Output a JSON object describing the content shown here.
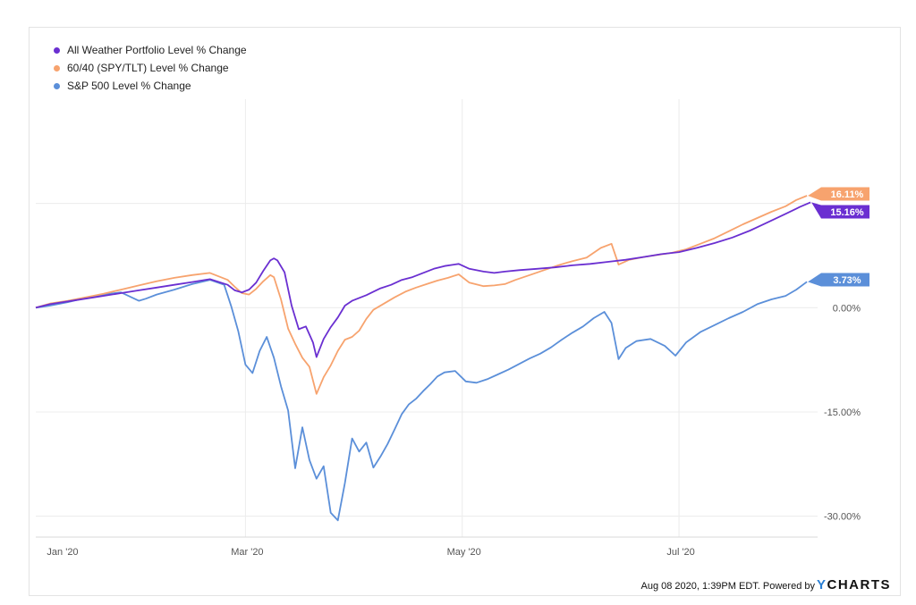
{
  "footer": {
    "timestamp": "Aug 08 2020, 1:39PM EDT.",
    "powered_by": "Powered by",
    "brand_prefix": "Y",
    "brand_name": "CHARTS"
  },
  "chart_data": {
    "type": "line",
    "xaxis": {
      "ticks": [
        {
          "label": "Jan '20",
          "day": -1
        },
        {
          "label": "Mar '20",
          "day": 58
        },
        {
          "label": "May '20",
          "day": 119
        },
        {
          "label": "Jul '20",
          "day": 180
        }
      ],
      "range_days": [
        -1,
        219
      ]
    },
    "yaxis": {
      "ticks": [
        {
          "label": "0.00%",
          "value": 0
        },
        {
          "label": "-15.00%",
          "value": -15
        },
        {
          "label": "-30.00%",
          "value": -30
        }
      ],
      "range": [
        -33,
        30
      ],
      "grid": true
    },
    "legend_position": "top-left",
    "series": [
      {
        "name": "All Weather Portfolio Level % Change",
        "color": "#6a2fd1",
        "end_label": "15.16%",
        "points": [
          [
            -1,
            0
          ],
          [
            3,
            0.5
          ],
          [
            8,
            0.9
          ],
          [
            13,
            1.3
          ],
          [
            18,
            1.7
          ],
          [
            23,
            2.1
          ],
          [
            28,
            2.5
          ],
          [
            33,
            2.9
          ],
          [
            38,
            3.3
          ],
          [
            43,
            3.7
          ],
          [
            48,
            4.1
          ],
          [
            53,
            3.3
          ],
          [
            55,
            2.5
          ],
          [
            57,
            2.2
          ],
          [
            59,
            2.6
          ],
          [
            61,
            3.6
          ],
          [
            63,
            5.3
          ],
          [
            65,
            6.8
          ],
          [
            66,
            7.1
          ],
          [
            67,
            6.8
          ],
          [
            69,
            5.1
          ],
          [
            71,
            0.3
          ],
          [
            73,
            -3.1
          ],
          [
            75,
            -2.7
          ],
          [
            77,
            -5.0
          ],
          [
            78,
            -7.1
          ],
          [
            80,
            -4.5
          ],
          [
            82,
            -2.8
          ],
          [
            84,
            -1.4
          ],
          [
            86,
            0.3
          ],
          [
            88,
            1.0
          ],
          [
            90,
            1.4
          ],
          [
            92,
            1.8
          ],
          [
            94,
            2.3
          ],
          [
            96,
            2.8
          ],
          [
            99,
            3.3
          ],
          [
            102,
            4.0
          ],
          [
            105,
            4.4
          ],
          [
            108,
            5.0
          ],
          [
            111,
            5.6
          ],
          [
            114,
            6.0
          ],
          [
            118,
            6.3
          ],
          [
            121,
            5.6
          ],
          [
            125,
            5.2
          ],
          [
            128,
            5.0
          ],
          [
            131,
            5.2
          ],
          [
            135,
            5.4
          ],
          [
            140,
            5.6
          ],
          [
            145,
            5.8
          ],
          [
            150,
            6.1
          ],
          [
            155,
            6.3
          ],
          [
            160,
            6.6
          ],
          [
            165,
            6.9
          ],
          [
            170,
            7.3
          ],
          [
            175,
            7.7
          ],
          [
            180,
            8.0
          ],
          [
            185,
            8.6
          ],
          [
            190,
            9.3
          ],
          [
            195,
            10.1
          ],
          [
            200,
            11.1
          ],
          [
            205,
            12.3
          ],
          [
            210,
            13.5
          ],
          [
            214,
            14.5
          ],
          [
            217,
            15.16
          ]
        ]
      },
      {
        "name": "60/40 (SPY/TLT) Level % Change",
        "color": "#f7a36e",
        "end_label": "16.11%",
        "points": [
          [
            -1,
            0
          ],
          [
            3,
            0.6
          ],
          [
            8,
            1.0
          ],
          [
            13,
            1.5
          ],
          [
            18,
            2.0
          ],
          [
            23,
            2.6
          ],
          [
            28,
            3.2
          ],
          [
            33,
            3.8
          ],
          [
            38,
            4.3
          ],
          [
            43,
            4.7
          ],
          [
            48,
            5.0
          ],
          [
            53,
            4.0
          ],
          [
            55,
            3.0
          ],
          [
            57,
            2.1
          ],
          [
            59,
            1.9
          ],
          [
            61,
            2.7
          ],
          [
            63,
            3.8
          ],
          [
            65,
            4.7
          ],
          [
            66,
            4.4
          ],
          [
            68,
            1.2
          ],
          [
            70,
            -3.0
          ],
          [
            72,
            -5.2
          ],
          [
            74,
            -7.2
          ],
          [
            76,
            -8.5
          ],
          [
            78,
            -12.4
          ],
          [
            80,
            -10.0
          ],
          [
            82,
            -8.3
          ],
          [
            84,
            -6.2
          ],
          [
            86,
            -4.6
          ],
          [
            88,
            -4.2
          ],
          [
            90,
            -3.3
          ],
          [
            92,
            -1.6
          ],
          [
            94,
            -0.3
          ],
          [
            97,
            0.6
          ],
          [
            100,
            1.5
          ],
          [
            103,
            2.3
          ],
          [
            106,
            2.9
          ],
          [
            109,
            3.4
          ],
          [
            112,
            3.9
          ],
          [
            115,
            4.3
          ],
          [
            118,
            4.8
          ],
          [
            121,
            3.6
          ],
          [
            125,
            3.1
          ],
          [
            128,
            3.2
          ],
          [
            131,
            3.4
          ],
          [
            134,
            4.0
          ],
          [
            138,
            4.7
          ],
          [
            142,
            5.4
          ],
          [
            146,
            6.1
          ],
          [
            150,
            6.7
          ],
          [
            154,
            7.2
          ],
          [
            158,
            8.6
          ],
          [
            161,
            9.2
          ],
          [
            163,
            6.2
          ],
          [
            166,
            6.9
          ],
          [
            170,
            7.3
          ],
          [
            174,
            7.6
          ],
          [
            178,
            7.9
          ],
          [
            182,
            8.4
          ],
          [
            186,
            9.2
          ],
          [
            190,
            10.0
          ],
          [
            194,
            11.0
          ],
          [
            198,
            12.0
          ],
          [
            202,
            12.9
          ],
          [
            206,
            13.8
          ],
          [
            210,
            14.6
          ],
          [
            213,
            15.5
          ],
          [
            216,
            16.11
          ]
        ]
      },
      {
        "name": "S&P 500 Level % Change",
        "color": "#5b8fd9",
        "end_label": "3.73%",
        "points": [
          [
            -1,
            0
          ],
          [
            3,
            0.3
          ],
          [
            8,
            0.8
          ],
          [
            13,
            1.4
          ],
          [
            18,
            1.9
          ],
          [
            23,
            2.2
          ],
          [
            28,
            1.0
          ],
          [
            30,
            1.3
          ],
          [
            33,
            1.9
          ],
          [
            38,
            2.6
          ],
          [
            43,
            3.4
          ],
          [
            48,
            4.0
          ],
          [
            52,
            3.3
          ],
          [
            54,
            0.2
          ],
          [
            56,
            -3.4
          ],
          [
            58,
            -8.2
          ],
          [
            60,
            -9.4
          ],
          [
            62,
            -6.2
          ],
          [
            64,
            -4.2
          ],
          [
            66,
            -7.2
          ],
          [
            68,
            -11.3
          ],
          [
            70,
            -14.8
          ],
          [
            72,
            -23.1
          ],
          [
            74,
            -17.2
          ],
          [
            76,
            -21.9
          ],
          [
            78,
            -24.6
          ],
          [
            80,
            -22.8
          ],
          [
            82,
            -29.5
          ],
          [
            84,
            -30.6
          ],
          [
            86,
            -25.2
          ],
          [
            88,
            -18.8
          ],
          [
            90,
            -20.7
          ],
          [
            92,
            -19.4
          ],
          [
            94,
            -23.0
          ],
          [
            96,
            -21.4
          ],
          [
            98,
            -19.6
          ],
          [
            100,
            -17.5
          ],
          [
            102,
            -15.3
          ],
          [
            104,
            -13.9
          ],
          [
            106,
            -13.1
          ],
          [
            108,
            -12.0
          ],
          [
            110,
            -11.0
          ],
          [
            112,
            -9.9
          ],
          [
            114,
            -9.3
          ],
          [
            117,
            -9.1
          ],
          [
            120,
            -10.6
          ],
          [
            123,
            -10.8
          ],
          [
            126,
            -10.3
          ],
          [
            129,
            -9.6
          ],
          [
            132,
            -8.9
          ],
          [
            135,
            -8.1
          ],
          [
            138,
            -7.3
          ],
          [
            141,
            -6.6
          ],
          [
            144,
            -5.7
          ],
          [
            147,
            -4.6
          ],
          [
            150,
            -3.6
          ],
          [
            153,
            -2.7
          ],
          [
            156,
            -1.5
          ],
          [
            159,
            -0.6
          ],
          [
            161,
            -2.2
          ],
          [
            163,
            -7.4
          ],
          [
            165,
            -5.8
          ],
          [
            168,
            -4.8
          ],
          [
            172,
            -4.5
          ],
          [
            176,
            -5.5
          ],
          [
            179,
            -6.9
          ],
          [
            182,
            -5.0
          ],
          [
            186,
            -3.5
          ],
          [
            190,
            -2.5
          ],
          [
            194,
            -1.5
          ],
          [
            198,
            -0.6
          ],
          [
            202,
            0.5
          ],
          [
            206,
            1.2
          ],
          [
            210,
            1.7
          ],
          [
            213,
            2.6
          ],
          [
            216,
            3.73
          ]
        ]
      }
    ]
  }
}
